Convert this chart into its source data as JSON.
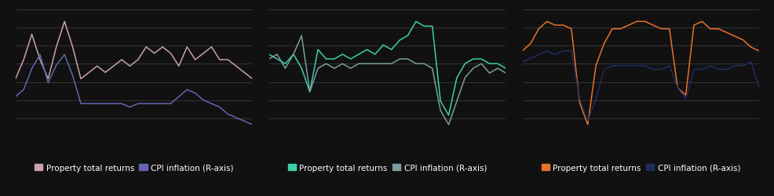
{
  "background_color": "#111111",
  "panel_bg": "#111111",
  "grid_color": "#444444",
  "n_gridlines": 8,
  "panel1": {
    "returns": [
      5,
      8,
      12,
      8,
      5,
      10,
      14,
      10,
      5,
      6,
      7,
      6,
      7,
      8,
      7,
      8,
      10,
      9,
      10,
      9,
      7,
      10,
      8,
      9,
      10,
      8,
      8,
      7,
      6,
      5
    ],
    "cpi": [
      4,
      6,
      12,
      16,
      8,
      13,
      16,
      10,
      2,
      2,
      2,
      2,
      2,
      2,
      1,
      2,
      2,
      2,
      2,
      2,
      4,
      6,
      5,
      3,
      2,
      1,
      -1,
      -2,
      -3,
      -4
    ],
    "returns_color": "#c9a0b4",
    "cpi_color": "#6366b0",
    "legend_label1": "Property total returns",
    "legend_label2": "CPI inflation (R-axis)",
    "returns_scale": 1.0,
    "cpi_scale": 0.55
  },
  "panel2": {
    "returns": [
      6,
      5,
      4,
      6,
      3,
      -2,
      7,
      5,
      5,
      6,
      5,
      6,
      7,
      6,
      8,
      7,
      9,
      10,
      13,
      12,
      12,
      -4,
      -7,
      1,
      4,
      5,
      5,
      4,
      4,
      3
    ],
    "cpi": [
      5,
      6,
      3,
      6,
      10,
      -2,
      3,
      4,
      3,
      4,
      3,
      4,
      4,
      4,
      4,
      4,
      5,
      5,
      4,
      4,
      3,
      -6,
      -9,
      -4,
      1,
      3,
      4,
      2,
      3,
      2
    ],
    "returns_color": "#3ecfaa",
    "cpi_color": "#7a9e9f",
    "legend_label1": "Property total returns",
    "legend_label2": "CPI inflation (R-axis)",
    "returns_scale": 1.0,
    "cpi_scale": 1.0
  },
  "panel3": {
    "returns": [
      6,
      8,
      12,
      14,
      13,
      13,
      12,
      -8,
      -14,
      2,
      8,
      12,
      12,
      13,
      14,
      14,
      13,
      12,
      12,
      -4,
      -6,
      13,
      14,
      12,
      12,
      11,
      10,
      9,
      7,
      6
    ],
    "cpi": [
      3,
      4,
      5,
      6,
      5,
      6,
      6,
      -7,
      -13,
      -7,
      1,
      2,
      2,
      2,
      2,
      2,
      1,
      1,
      2,
      -4,
      -7,
      1,
      1,
      2,
      1,
      1,
      2,
      2,
      3,
      -4
    ],
    "returns_color": "#e8722a",
    "cpi_color": "#1e2d5e",
    "legend_label1": "Property total returns",
    "legend_label2": "CPI inflation (R-axis)",
    "returns_scale": 1.0,
    "cpi_scale": 1.0
  },
  "legend_fontsize": 7.5,
  "line_width": 1.1
}
